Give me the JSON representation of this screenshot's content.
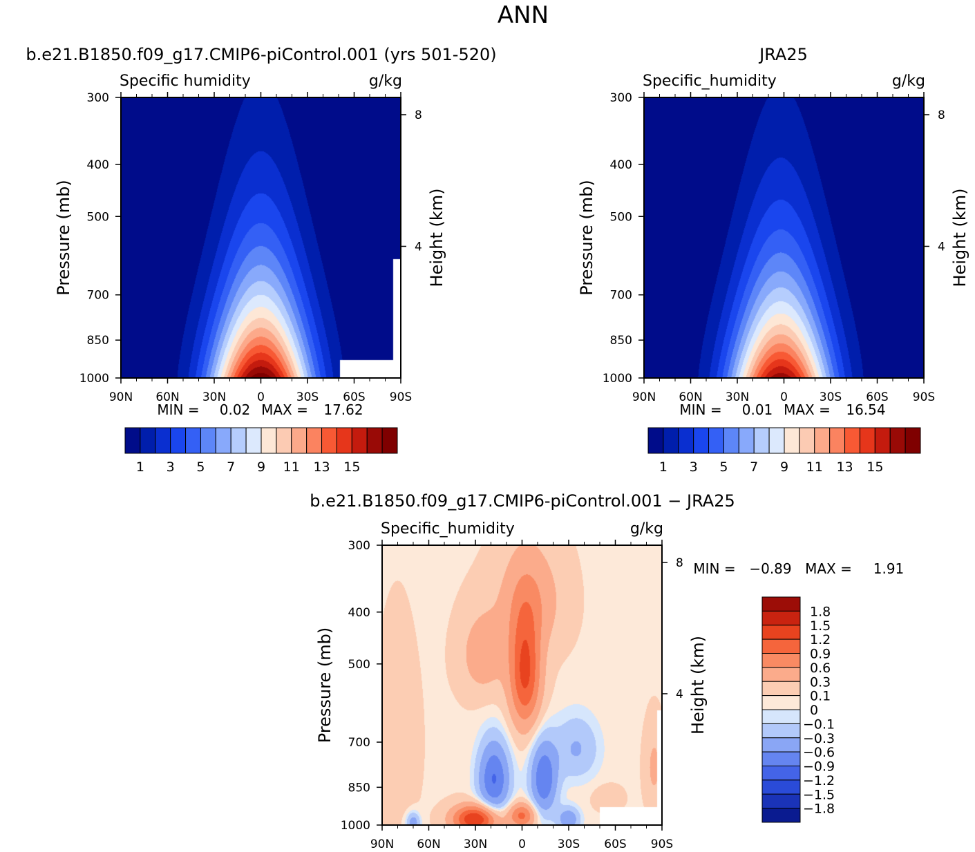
{
  "figure_title": "ANN",
  "colors": {
    "seq": [
      "#000c8a",
      "#001eac",
      "#0a2fd0",
      "#1a46ee",
      "#3460f5",
      "#5d86f8",
      "#88a9fb",
      "#b5cdfd",
      "#dce9fd",
      "#fde7d6",
      "#fccbb3",
      "#fca98a",
      "#fb8360",
      "#f85934",
      "#e6361b",
      "#c41b0e",
      "#990a06",
      "#7f0000"
    ],
    "diff": [
      "#0a1b90",
      "#1a33b8",
      "#2a4bd8",
      "#4464e8",
      "#6585f0",
      "#8aa6f5",
      "#b2c9fa",
      "#d6e6fc",
      "#fde9d9",
      "#fccdb3",
      "#fbab8b",
      "#f98a63",
      "#f5653c",
      "#e8431f",
      "#c92310",
      "#9c0d07"
    ]
  },
  "chart_data": [
    {
      "id": "model",
      "type": "contour",
      "title": "b.e21.B1850.f09_g17.CMIP6-piControl.001 (yrs 501-520)",
      "left_label": "Specific humidity",
      "right_label": "g/kg",
      "ylabel": "Pressure (mb)",
      "y2label": "Height (km)",
      "xticks": [
        "90N",
        "60N",
        "30N",
        "0",
        "30S",
        "60S",
        "90S"
      ],
      "yticks": [
        "300",
        "400",
        "500",
        "700",
        "850",
        "1000"
      ],
      "y2ticks": [
        "8",
        "4"
      ],
      "min_label": "MIN =",
      "min_value": "0.02",
      "max_label": "MAX =",
      "max_value": "17.62",
      "peak_lat": 0,
      "peak_value": 17.62,
      "levels": [
        1,
        2,
        3,
        4,
        5,
        6,
        7,
        8,
        9,
        10,
        11,
        12,
        13,
        14,
        15,
        16,
        17
      ],
      "colorbar_labels": [
        "1",
        "3",
        "5",
        "7",
        "9",
        "11",
        "13",
        "15"
      ]
    },
    {
      "id": "obs",
      "type": "contour",
      "title": "JRA25",
      "left_label": "Specific_humidity",
      "right_label": "g/kg",
      "ylabel": "Pressure (mb)",
      "y2label": "Height (km)",
      "xticks": [
        "90N",
        "60N",
        "30N",
        "0",
        "30S",
        "60S",
        "90S"
      ],
      "yticks": [
        "300",
        "400",
        "500",
        "700",
        "850",
        "1000"
      ],
      "y2ticks": [
        "8",
        "4"
      ],
      "min_label": "MIN =",
      "min_value": "0.01",
      "max_label": "MAX =",
      "max_value": "16.54",
      "peak_lat": 2,
      "peak_value": 16.54,
      "levels": [
        1,
        2,
        3,
        4,
        5,
        6,
        7,
        8,
        9,
        10,
        11,
        12,
        13,
        14,
        15,
        16,
        17
      ],
      "colorbar_labels": [
        "1",
        "3",
        "5",
        "7",
        "9",
        "11",
        "13",
        "15"
      ]
    },
    {
      "id": "diff",
      "type": "contour",
      "title": "b.e21.B1850.f09_g17.CMIP6-piControl.001 − JRA25",
      "left_label": "Specific_humidity",
      "right_label": "g/kg",
      "ylabel": "Pressure (mb)",
      "y2label": "Height (km)",
      "xticks": [
        "90N",
        "60N",
        "30N",
        "0",
        "30S",
        "60S",
        "90S"
      ],
      "yticks": [
        "300",
        "400",
        "500",
        "700",
        "850",
        "1000"
      ],
      "y2ticks": [
        "8",
        "4"
      ],
      "min_label": "MIN =",
      "min_value": "−0.89",
      "max_label": "MAX =",
      "max_value": "1.91",
      "levels": [
        -1.8,
        -1.5,
        -1.2,
        -0.9,
        -0.6,
        -0.3,
        -0.1,
        0,
        0.1,
        0.3,
        0.6,
        0.9,
        1.2,
        1.5,
        1.8
      ],
      "colorbar_labels": [
        "1.8",
        "1.5",
        "1.2",
        "0.9",
        "0.6",
        "0.3",
        "0.1",
        "0",
        "−0.1",
        "−0.3",
        "−0.6",
        "−0.9",
        "−1.2",
        "−1.5",
        "−1.8"
      ]
    }
  ]
}
